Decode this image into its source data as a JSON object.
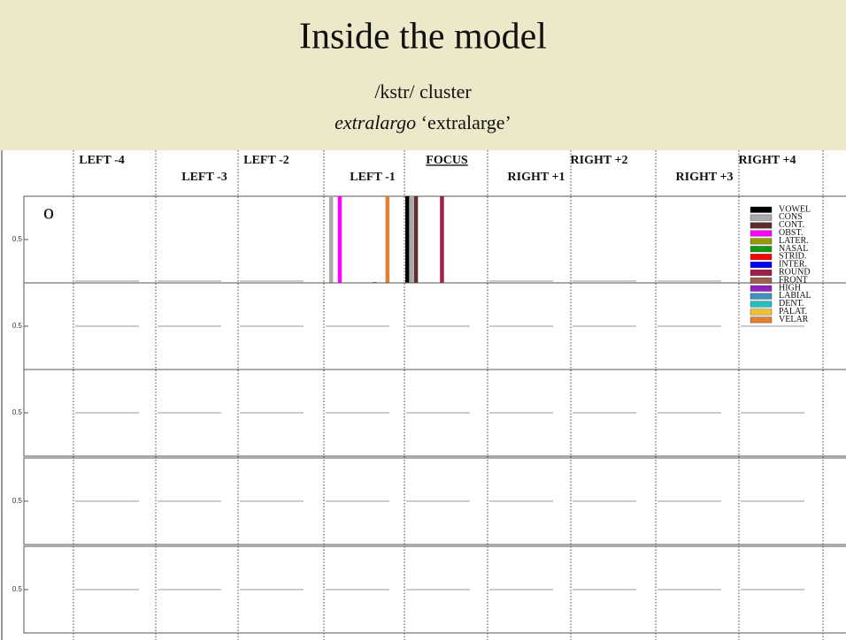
{
  "header": {
    "title": "Inside the model",
    "subtitle": "/kstr/ cluster",
    "word": "extralargo",
    "gloss": "‘extralarge’"
  },
  "columns": [
    "LEFT -4",
    "LEFT -3",
    "LEFT -2",
    "LEFT -1",
    "FOCUS",
    "RIGHT +1",
    "RIGHT +2",
    "RIGHT +3",
    "RIGHT +4"
  ],
  "legend": [
    {
      "name": "VOWEL",
      "color": "#000000"
    },
    {
      "name": "CONS",
      "color": "#aaaaaa"
    },
    {
      "name": "CONT.",
      "color": "#5c2e2e"
    },
    {
      "name": "OBST.",
      "color": "#ff00ff"
    },
    {
      "name": "LATER.",
      "color": "#999900"
    },
    {
      "name": "NASAL",
      "color": "#119911"
    },
    {
      "name": "STRID.",
      "color": "#ff0000"
    },
    {
      "name": "INTER.",
      "color": "#0000ff"
    },
    {
      "name": "ROUND",
      "color": "#a0204a"
    },
    {
      "name": "FRONT",
      "color": "#a06050"
    },
    {
      "name": "HIGH",
      "color": "#9020c0"
    },
    {
      "name": "LABIAL",
      "color": "#4090c0"
    },
    {
      "name": "DENT.",
      "color": "#20c0c0"
    },
    {
      "name": "PALAT.",
      "color": "#f0c030"
    },
    {
      "name": "VELAR",
      "color": "#e08030"
    }
  ],
  "ylim": [
    0,
    1
  ],
  "rows": [
    {
      "label": "o",
      "tick": 0.5,
      "bars": [
        {
          "column": 3,
          "feature": 1,
          "value": 1
        },
        {
          "column": 3,
          "feature": 3,
          "value": 1
        },
        {
          "column": 3,
          "feature": 11,
          "value": 0.01
        },
        {
          "column": 3,
          "feature": 14,
          "value": 1
        },
        {
          "column": 4,
          "feature": 0,
          "value": 1
        },
        {
          "column": 4,
          "feature": 1,
          "value": 1
        },
        {
          "column": 4,
          "feature": 2,
          "value": 1
        },
        {
          "column": 4,
          "feature": 8,
          "value": 1
        }
      ]
    },
    {
      "tick": 0.5
    },
    {
      "tick": 0.5
    },
    {
      "tick": 0.5
    },
    {
      "tick": 0.5
    }
  ]
}
